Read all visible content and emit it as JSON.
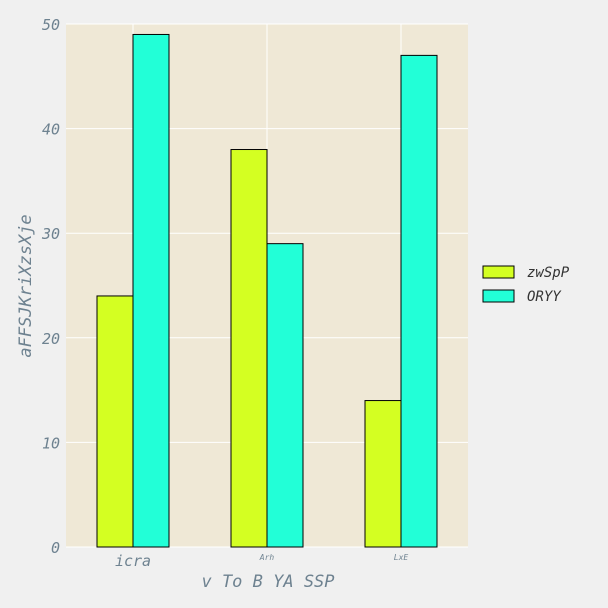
{
  "chart_data": {
    "type": "bar",
    "categories": [
      "icra",
      "Arh",
      "LxE"
    ],
    "series": [
      {
        "name": "zwSpP",
        "values": [
          24,
          38,
          14
        ],
        "color": "#d4ff22"
      },
      {
        "name": "ORYY",
        "values": [
          49,
          29,
          47
        ],
        "color": "#22ffd7"
      }
    ],
    "xlabel": "v To B YA SSP",
    "ylabel": "aFFSJKriXzsXje",
    "ylim": [
      0,
      50
    ],
    "yticks": [
      0,
      10,
      20,
      30,
      40,
      50
    ],
    "grid": true,
    "legend": "right",
    "plot_background": "#efe8d6",
    "page_background": "#f0f0f0"
  }
}
